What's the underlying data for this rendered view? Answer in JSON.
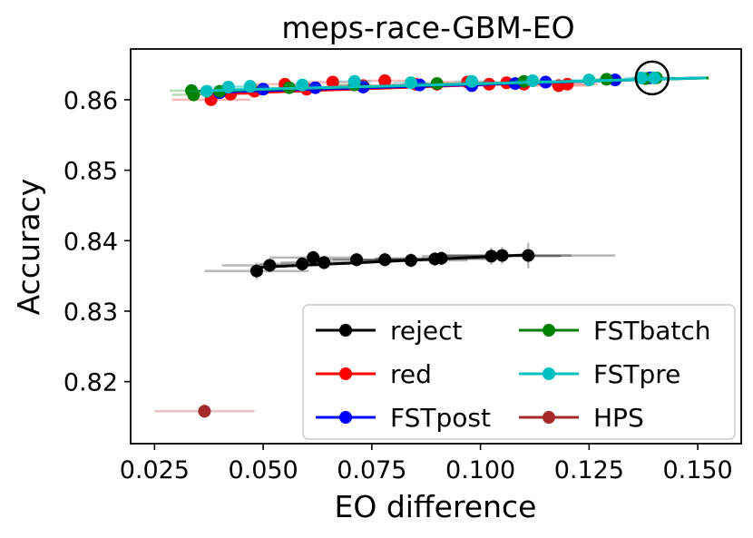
{
  "chart_data": {
    "type": "scatter",
    "title": "meps-race-GBM-EO",
    "xlabel": "EO difference",
    "ylabel": "Accuracy",
    "xlim": [
      0.0195,
      0.16
    ],
    "ylim": [
      0.8112,
      0.8672
    ],
    "xticks": [
      0.025,
      0.05,
      0.075,
      0.1,
      0.125,
      0.15
    ],
    "xtick_labels": [
      "0.025",
      "0.050",
      "0.075",
      "0.100",
      "0.125",
      "0.150"
    ],
    "yticks": [
      0.82,
      0.83,
      0.84,
      0.85,
      0.86
    ],
    "ytick_labels": [
      "0.82",
      "0.83",
      "0.84",
      "0.85",
      "0.86"
    ],
    "legend_position": "lower-right",
    "legend_columns": 2,
    "series": [
      {
        "name": "reject",
        "color": "#000000",
        "x": [
          0.0485,
          0.0515,
          0.059,
          0.0615,
          0.064,
          0.0715,
          0.078,
          0.084,
          0.0895,
          0.091,
          0.1025,
          0.105,
          0.111
        ],
        "y": [
          0.8357,
          0.8365,
          0.8367,
          0.8376,
          0.8369,
          0.8373,
          0.8373,
          0.8372,
          0.8374,
          0.8375,
          0.8378,
          0.8379,
          0.8379
        ],
        "line_y": [
          0.8362,
          0.838
        ],
        "x_err": [
          0.012,
          0.011,
          0.01,
          0.01,
          0.01,
          0.011,
          0.012,
          0.013,
          0.014,
          0.015,
          0.016,
          0.016,
          0.02
        ],
        "y_err": [
          0.0012,
          0.001,
          0.001,
          0.001,
          0.001,
          0.001,
          0.001,
          0.001,
          0.001,
          0.001,
          0.0012,
          0.0012,
          0.0018
        ]
      },
      {
        "name": "red",
        "color": "#ff0000",
        "x": [
          0.038,
          0.0425,
          0.048,
          0.055,
          0.06,
          0.066,
          0.073,
          0.078,
          0.085,
          0.09,
          0.097,
          0.102,
          0.106,
          0.11,
          0.118,
          0.12
        ],
        "y": [
          0.86,
          0.8608,
          0.8612,
          0.8622,
          0.8615,
          0.8625,
          0.862,
          0.8627,
          0.8622,
          0.8622,
          0.8625,
          0.8622,
          0.8624,
          0.8622,
          0.862,
          0.8622
        ],
        "line_y": [
          0.8608,
          0.8628
        ],
        "x_err": [
          0.009,
          0.008,
          0.008,
          0.007,
          0.007,
          0.007,
          0.007,
          0.007,
          0.007,
          0.007,
          0.007,
          0.007,
          0.007,
          0.007,
          0.007,
          0.007
        ],
        "y_err": [
          0.0008,
          0.0008,
          0.0008,
          0.0008,
          0.0008,
          0.0008,
          0.0008,
          0.0008,
          0.0008,
          0.0008,
          0.0008,
          0.0008,
          0.0008,
          0.0008,
          0.0008,
          0.0008
        ]
      },
      {
        "name": "FSTpost",
        "color": "#0000ff",
        "x": [
          0.04,
          0.05,
          0.062,
          0.073,
          0.086,
          0.098,
          0.108,
          0.115,
          0.131,
          0.139
        ],
        "y": [
          0.861,
          0.8615,
          0.8617,
          0.8618,
          0.8621,
          0.862,
          0.8623,
          0.8625,
          0.8628,
          0.8631
        ],
        "line_y": [
          0.8611,
          0.8631
        ],
        "x_err": [
          0.004,
          0.004,
          0.004,
          0.004,
          0.004,
          0.004,
          0.004,
          0.004,
          0.004,
          0.004
        ],
        "y_err": [
          0.0006,
          0.0006,
          0.0006,
          0.0006,
          0.0006,
          0.0006,
          0.0006,
          0.0006,
          0.0006,
          0.0006
        ]
      },
      {
        "name": "FSTbatch",
        "color": "#008000",
        "x": [
          0.0335,
          0.034,
          0.04,
          0.056,
          0.071,
          0.09,
          0.11,
          0.129,
          0.138,
          0.1405
        ],
        "y": [
          0.8613,
          0.8607,
          0.8612,
          0.8617,
          0.8621,
          0.8623,
          0.8626,
          0.8629,
          0.863,
          0.8631
        ],
        "line_y": [
          0.8612,
          0.8631
        ],
        "x_err": [
          0.005,
          0.005,
          0.005,
          0.004,
          0.004,
          0.004,
          0.004,
          0.004,
          0.004,
          0.004
        ],
        "y_err": [
          0.0005,
          0.0005,
          0.0005,
          0.0005,
          0.0005,
          0.0005,
          0.0005,
          0.0005,
          0.0005,
          0.0005
        ]
      },
      {
        "name": "FSTpre",
        "color": "#00bfbf",
        "x": [
          0.037,
          0.042,
          0.047,
          0.059,
          0.071,
          0.084,
          0.098,
          0.112,
          0.125,
          0.137,
          0.14
        ],
        "y": [
          0.8612,
          0.8618,
          0.8619,
          0.8621,
          0.8626,
          0.8624,
          0.8626,
          0.8627,
          0.8628,
          0.8631,
          0.8631
        ],
        "line_y": [
          0.8613,
          0.8631
        ],
        "x_err": [
          0.004,
          0.004,
          0.004,
          0.004,
          0.004,
          0.004,
          0.004,
          0.004,
          0.004,
          0.004,
          0.004
        ],
        "y_err": [
          0.0006,
          0.0006,
          0.0006,
          0.0006,
          0.0006,
          0.0006,
          0.0006,
          0.0006,
          0.0006,
          0.0006,
          0.0006
        ]
      },
      {
        "name": "HPS",
        "color": "#a52a2a",
        "x": [
          0.0365
        ],
        "y": [
          0.8158
        ],
        "line_y": [],
        "x_err": [
          0.0115
        ],
        "y_err": [
          0.001
        ]
      }
    ],
    "annotations": [
      {
        "type": "circle",
        "x": 0.1395,
        "y": 0.8631,
        "label": ""
      }
    ]
  }
}
